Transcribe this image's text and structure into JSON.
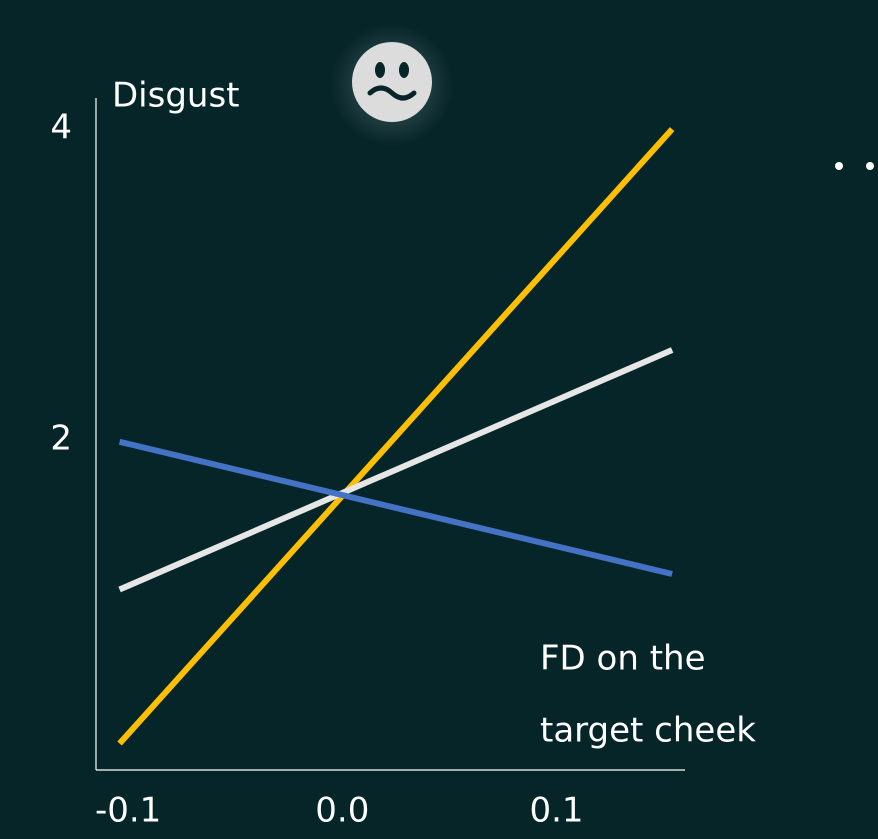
{
  "chart_data": {
    "type": "line",
    "ylabel": "Disgust",
    "xlabel": [
      "FD on the",
      "target cheek"
    ],
    "x": [
      -0.104,
      0.154
    ],
    "series": [
      {
        "color": "#fdbf00",
        "values": [
          0.05,
          4.0
        ]
      },
      {
        "color": "#e6e6e6",
        "values": [
          1.04,
          2.58
        ]
      },
      {
        "color": "#4472c4",
        "values": [
          1.99,
          1.14
        ]
      }
    ],
    "xlim": [
      -0.115,
      0.16
    ],
    "ylim": [
      -0.12,
      4.2
    ],
    "xticks": [
      -0.1,
      {
        "value": 0,
        "label": "0.0"
      },
      0.1
    ],
    "yticks": [
      4,
      2
    ],
    "grid": false
  }
}
